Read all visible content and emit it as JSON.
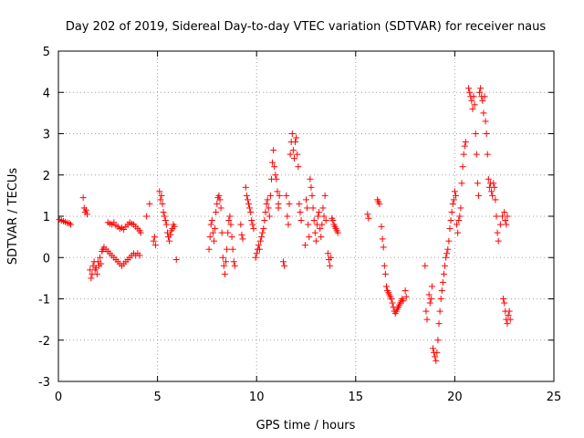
{
  "chart_data": {
    "type": "scatter",
    "title": "Day 202 of 2019, Sidereal Day-to-day VTEC variation (SDTVAR) for receiver naus",
    "xlabel": "GPS time / hours",
    "ylabel": "SDTVAR / TECUs",
    "xlim": [
      0,
      25
    ],
    "ylim": [
      -3,
      5
    ],
    "xticks": [
      "0",
      "5",
      "10",
      "15",
      "20",
      "25"
    ],
    "yticks": [
      "-3",
      "-2",
      "-1",
      "0",
      "1",
      "2",
      "3",
      "4",
      "5"
    ],
    "grid": true,
    "marker": "+",
    "series": [
      {
        "name": "SDTVAR",
        "color": "#ff0000",
        "points": [
          [
            0.05,
            0.92
          ],
          [
            0.15,
            0.9
          ],
          [
            0.25,
            0.88
          ],
          [
            0.35,
            0.86
          ],
          [
            0.45,
            0.84
          ],
          [
            0.55,
            0.83
          ],
          [
            0.62,
            0.8
          ],
          [
            1.25,
            1.45
          ],
          [
            1.3,
            1.2
          ],
          [
            1.35,
            1.1
          ],
          [
            1.4,
            1.15
          ],
          [
            1.45,
            1.05
          ],
          [
            1.6,
            -0.3
          ],
          [
            1.65,
            -0.5
          ],
          [
            1.7,
            -0.4
          ],
          [
            1.75,
            -0.2
          ],
          [
            1.8,
            -0.1
          ],
          [
            1.85,
            -0.3
          ],
          [
            1.9,
            -0.25
          ],
          [
            1.95,
            -0.4
          ],
          [
            2.0,
            -0.1
          ],
          [
            2.05,
            -0.2
          ],
          [
            2.1,
            0.0
          ],
          [
            2.15,
            -0.15
          ],
          [
            2.2,
            0.15
          ],
          [
            2.25,
            0.2
          ],
          [
            2.3,
            0.25
          ],
          [
            2.4,
            0.2
          ],
          [
            2.5,
            0.15
          ],
          [
            2.6,
            0.1
          ],
          [
            2.7,
            0.05
          ],
          [
            2.8,
            0.0
          ],
          [
            2.9,
            -0.05
          ],
          [
            3.0,
            -0.1
          ],
          [
            3.1,
            -0.15
          ],
          [
            3.2,
            -0.2
          ],
          [
            3.3,
            -0.15
          ],
          [
            3.4,
            -0.1
          ],
          [
            3.5,
            -0.05
          ],
          [
            3.6,
            0.0
          ],
          [
            3.7,
            0.05
          ],
          [
            3.8,
            0.1
          ],
          [
            3.9,
            0.05
          ],
          [
            4.0,
            0.1
          ],
          [
            4.1,
            0.05
          ],
          [
            2.5,
            0.85
          ],
          [
            2.6,
            0.82
          ],
          [
            2.7,
            0.8
          ],
          [
            2.8,
            0.85
          ],
          [
            2.9,
            0.78
          ],
          [
            3.0,
            0.75
          ],
          [
            3.1,
            0.7
          ],
          [
            3.2,
            0.72
          ],
          [
            3.3,
            0.68
          ],
          [
            3.4,
            0.75
          ],
          [
            3.5,
            0.8
          ],
          [
            3.6,
            0.85
          ],
          [
            3.7,
            0.82
          ],
          [
            3.8,
            0.8
          ],
          [
            3.9,
            0.75
          ],
          [
            4.0,
            0.7
          ],
          [
            4.1,
            0.65
          ],
          [
            4.15,
            0.6
          ],
          [
            4.45,
            1.0
          ],
          [
            4.6,
            1.3
          ],
          [
            4.8,
            0.4
          ],
          [
            4.85,
            0.5
          ],
          [
            4.9,
            0.3
          ],
          [
            5.1,
            1.6
          ],
          [
            5.15,
            1.4
          ],
          [
            5.2,
            1.5
          ],
          [
            5.25,
            1.3
          ],
          [
            5.3,
            1.1
          ],
          [
            5.35,
            1.0
          ],
          [
            5.4,
            0.9
          ],
          [
            5.45,
            0.8
          ],
          [
            5.5,
            0.6
          ],
          [
            5.55,
            0.5
          ],
          [
            5.6,
            0.4
          ],
          [
            5.65,
            0.55
          ],
          [
            5.7,
            0.65
          ],
          [
            5.75,
            0.7
          ],
          [
            5.8,
            0.8
          ],
          [
            5.85,
            0.75
          ],
          [
            5.95,
            -0.05
          ],
          [
            7.6,
            0.2
          ],
          [
            7.65,
            0.5
          ],
          [
            7.7,
            0.8
          ],
          [
            7.75,
            0.9
          ],
          [
            7.8,
            0.6
          ],
          [
            7.85,
            0.4
          ],
          [
            7.9,
            0.7
          ],
          [
            7.95,
            1.1
          ],
          [
            8.0,
            1.3
          ],
          [
            8.05,
            1.45
          ],
          [
            8.1,
            1.5
          ],
          [
            8.15,
            1.4
          ],
          [
            8.2,
            1.2
          ],
          [
            8.25,
            0.6
          ],
          [
            8.3,
            0.0
          ],
          [
            8.35,
            -0.2
          ],
          [
            8.4,
            -0.4
          ],
          [
            8.45,
            -0.1
          ],
          [
            8.5,
            0.2
          ],
          [
            8.55,
            0.6
          ],
          [
            8.6,
            0.9
          ],
          [
            8.65,
            1.0
          ],
          [
            8.7,
            0.8
          ],
          [
            8.75,
            0.5
          ],
          [
            8.8,
            0.2
          ],
          [
            8.85,
            -0.1
          ],
          [
            8.9,
            -0.2
          ],
          [
            9.2,
            0.8
          ],
          [
            9.25,
            0.55
          ],
          [
            9.3,
            0.45
          ],
          [
            9.45,
            1.7
          ],
          [
            9.5,
            1.5
          ],
          [
            9.55,
            1.4
          ],
          [
            9.6,
            1.3
          ],
          [
            9.65,
            1.2
          ],
          [
            9.7,
            1.1
          ],
          [
            9.75,
            0.9
          ],
          [
            9.8,
            0.8
          ],
          [
            9.85,
            0.7
          ],
          [
            9.95,
            0.0
          ],
          [
            10.0,
            0.1
          ],
          [
            10.05,
            0.2
          ],
          [
            10.1,
            0.3
          ],
          [
            10.15,
            0.2
          ],
          [
            10.2,
            0.4
          ],
          [
            10.25,
            0.5
          ],
          [
            10.3,
            0.6
          ],
          [
            10.35,
            0.7
          ],
          [
            10.4,
            0.9
          ],
          [
            10.45,
            1.1
          ],
          [
            10.5,
            1.3
          ],
          [
            10.55,
            1.4
          ],
          [
            10.6,
            1.2
          ],
          [
            10.65,
            1.0
          ],
          [
            10.7,
            1.5
          ],
          [
            10.75,
            1.9
          ],
          [
            10.8,
            2.3
          ],
          [
            10.85,
            2.6
          ],
          [
            10.9,
            2.2
          ],
          [
            10.95,
            2.0
          ],
          [
            11.0,
            1.9
          ],
          [
            11.05,
            1.6
          ],
          [
            11.1,
            1.3
          ],
          [
            11.15,
            1.5
          ],
          [
            11.1,
            1.2
          ],
          [
            11.35,
            -0.1
          ],
          [
            11.4,
            -0.2
          ],
          [
            11.5,
            1.5
          ],
          [
            11.55,
            1.0
          ],
          [
            11.6,
            0.8
          ],
          [
            11.65,
            1.3
          ],
          [
            11.7,
            2.5
          ],
          [
            11.75,
            2.8
          ],
          [
            11.8,
            3.0
          ],
          [
            11.85,
            2.6
          ],
          [
            11.9,
            2.4
          ],
          [
            11.95,
            2.8
          ],
          [
            12.0,
            2.9
          ],
          [
            12.05,
            2.5
          ],
          [
            12.1,
            2.2
          ],
          [
            12.15,
            1.3
          ],
          [
            12.2,
            1.1
          ],
          [
            12.25,
            0.9
          ],
          [
            12.45,
            0.3
          ],
          [
            12.5,
            1.4
          ],
          [
            12.55,
            1.2
          ],
          [
            12.6,
            0.8
          ],
          [
            12.65,
            0.5
          ],
          [
            12.7,
            1.9
          ],
          [
            12.75,
            1.7
          ],
          [
            12.8,
            1.5
          ],
          [
            12.85,
            1.2
          ],
          [
            12.9,
            0.9
          ],
          [
            12.95,
            0.6
          ],
          [
            13.0,
            0.4
          ],
          [
            13.05,
            0.8
          ],
          [
            13.1,
            1.0
          ],
          [
            13.15,
            1.1
          ],
          [
            13.2,
            0.7
          ],
          [
            13.25,
            0.5
          ],
          [
            13.3,
            0.8
          ],
          [
            13.35,
            1.2
          ],
          [
            13.4,
            1.0
          ],
          [
            13.45,
            1.5
          ],
          [
            13.5,
            0.9
          ],
          [
            13.6,
            0.1
          ],
          [
            13.65,
            -0.05
          ],
          [
            13.7,
            -0.2
          ],
          [
            13.75,
            0.0
          ],
          [
            13.8,
            0.95
          ],
          [
            13.85,
            0.9
          ],
          [
            13.9,
            0.8
          ],
          [
            13.95,
            0.75
          ],
          [
            14.0,
            0.7
          ],
          [
            14.05,
            0.65
          ],
          [
            14.1,
            0.6
          ],
          [
            15.6,
            1.05
          ],
          [
            15.65,
            0.95
          ],
          [
            16.1,
            1.4
          ],
          [
            16.15,
            1.35
          ],
          [
            16.2,
            1.3
          ],
          [
            16.3,
            0.75
          ],
          [
            16.35,
            0.45
          ],
          [
            16.4,
            0.25
          ],
          [
            16.45,
            -0.2
          ],
          [
            16.5,
            -0.4
          ],
          [
            16.55,
            -0.7
          ],
          [
            16.6,
            -0.8
          ],
          [
            16.65,
            -0.85
          ],
          [
            16.7,
            -0.9
          ],
          [
            16.75,
            -0.95
          ],
          [
            16.8,
            -1.0
          ],
          [
            16.85,
            -1.1
          ],
          [
            16.9,
            -1.2
          ],
          [
            16.95,
            -1.3
          ],
          [
            17.0,
            -1.35
          ],
          [
            17.05,
            -1.3
          ],
          [
            17.1,
            -1.25
          ],
          [
            17.15,
            -1.2
          ],
          [
            17.2,
            -1.15
          ],
          [
            17.25,
            -1.1
          ],
          [
            17.3,
            -1.05
          ],
          [
            17.35,
            -1.0
          ],
          [
            17.4,
            -1.05
          ],
          [
            17.5,
            -0.8
          ],
          [
            17.55,
            -0.95
          ],
          [
            18.5,
            -0.2
          ],
          [
            18.55,
            -1.3
          ],
          [
            18.6,
            -1.5
          ],
          [
            18.7,
            -0.9
          ],
          [
            18.75,
            -1.1
          ],
          [
            18.8,
            -1.0
          ],
          [
            18.85,
            -0.7
          ],
          [
            18.9,
            -2.2
          ],
          [
            18.95,
            -2.3
          ],
          [
            19.0,
            -2.4
          ],
          [
            19.05,
            -2.5
          ],
          [
            19.1,
            -2.3
          ],
          [
            19.15,
            -2.0
          ],
          [
            19.2,
            -1.6
          ],
          [
            19.25,
            -1.3
          ],
          [
            19.3,
            -1.0
          ],
          [
            19.35,
            -0.8
          ],
          [
            19.4,
            -0.6
          ],
          [
            19.45,
            -0.4
          ],
          [
            19.5,
            -0.2
          ],
          [
            19.55,
            0.0
          ],
          [
            19.6,
            0.1
          ],
          [
            19.65,
            0.2
          ],
          [
            19.7,
            0.4
          ],
          [
            19.75,
            0.7
          ],
          [
            19.8,
            0.9
          ],
          [
            19.85,
            1.1
          ],
          [
            19.9,
            1.3
          ],
          [
            19.95,
            1.4
          ],
          [
            20.0,
            1.6
          ],
          [
            20.05,
            1.5
          ],
          [
            20.1,
            0.8
          ],
          [
            20.15,
            0.6
          ],
          [
            20.2,
            0.9
          ],
          [
            20.25,
            1.0
          ],
          [
            20.3,
            1.2
          ],
          [
            20.35,
            1.8
          ],
          [
            20.4,
            2.2
          ],
          [
            20.45,
            2.5
          ],
          [
            20.5,
            2.7
          ],
          [
            20.55,
            2.8
          ],
          [
            20.7,
            4.1
          ],
          [
            20.75,
            4.0
          ],
          [
            20.8,
            3.9
          ],
          [
            20.85,
            3.8
          ],
          [
            20.9,
            3.6
          ],
          [
            20.95,
            3.9
          ],
          [
            21.0,
            3.7
          ],
          [
            21.05,
            3.0
          ],
          [
            21.1,
            2.5
          ],
          [
            21.15,
            1.8
          ],
          [
            21.2,
            1.5
          ],
          [
            21.25,
            4.0
          ],
          [
            21.3,
            4.1
          ],
          [
            21.35,
            3.9
          ],
          [
            21.4,
            3.8
          ],
          [
            21.45,
            3.5
          ],
          [
            21.5,
            3.9
          ],
          [
            21.55,
            3.3
          ],
          [
            21.6,
            3.0
          ],
          [
            21.65,
            2.5
          ],
          [
            21.7,
            1.9
          ],
          [
            21.75,
            1.7
          ],
          [
            21.8,
            1.8
          ],
          [
            21.85,
            1.6
          ],
          [
            21.9,
            1.5
          ],
          [
            21.95,
            1.8
          ],
          [
            22.0,
            1.7
          ],
          [
            22.05,
            1.4
          ],
          [
            22.1,
            1.0
          ],
          [
            22.15,
            0.6
          ],
          [
            22.2,
            0.4
          ],
          [
            22.3,
            0.8
          ],
          [
            22.4,
            1.0
          ],
          [
            22.5,
            1.1
          ],
          [
            22.55,
            0.9
          ],
          [
            22.6,
            0.8
          ],
          [
            22.65,
            1.0
          ],
          [
            22.45,
            -1.0
          ],
          [
            22.5,
            -1.1
          ],
          [
            22.55,
            -1.3
          ],
          [
            22.6,
            -1.5
          ],
          [
            22.65,
            -1.6
          ],
          [
            22.7,
            -1.4
          ],
          [
            22.75,
            -1.3
          ],
          [
            22.8,
            -1.5
          ]
        ]
      }
    ]
  }
}
